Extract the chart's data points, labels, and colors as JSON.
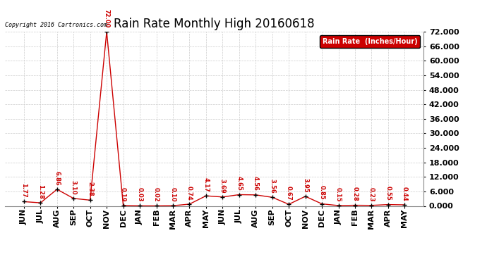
{
  "title": "Rain Rate Monthly High 20160618",
  "copyright": "Copyright 2016 Cartronics.com",
  "legend_label": "Rain Rate  (Inches/Hour)",
  "categories": [
    "JUN",
    "JUL",
    "AUG",
    "SEP",
    "OCT",
    "NOV",
    "DEC",
    "JAN",
    "FEB",
    "MAR",
    "APR",
    "MAY",
    "JUN",
    "JUL",
    "AUG",
    "SEP",
    "OCT",
    "NOV",
    "DEC",
    "JAN",
    "FEB",
    "MAR",
    "APR",
    "MAY"
  ],
  "values": [
    1.77,
    1.28,
    6.86,
    3.1,
    2.38,
    72.0,
    0.19,
    0.03,
    0.02,
    0.1,
    0.74,
    4.17,
    3.69,
    4.65,
    4.56,
    3.56,
    0.67,
    3.95,
    0.85,
    0.15,
    0.28,
    0.23,
    0.55,
    0.44
  ],
  "ylim": [
    0,
    72
  ],
  "yticks": [
    0.0,
    6.0,
    12.0,
    18.0,
    24.0,
    30.0,
    36.0,
    42.0,
    48.0,
    54.0,
    60.0,
    66.0,
    72.0
  ],
  "line_color": "#cc0000",
  "marker_color": "#000000",
  "grid_color": "#cccccc",
  "background_color": "#ffffff",
  "title_fontsize": 12,
  "tick_label_fontsize": 8,
  "value_label_fontsize": 6,
  "legend_bg": "#cc0000",
  "legend_text_color": "#ffffff"
}
